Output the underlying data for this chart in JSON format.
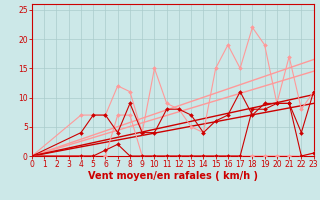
{
  "xlabel": "Vent moyen/en rafales ( km/h )",
  "xlim": [
    0,
    23
  ],
  "ylim": [
    0,
    26
  ],
  "xticks": [
    0,
    1,
    2,
    3,
    4,
    5,
    6,
    7,
    8,
    9,
    10,
    11,
    12,
    13,
    14,
    15,
    16,
    17,
    18,
    19,
    20,
    21,
    22,
    23
  ],
  "yticks": [
    0,
    5,
    10,
    15,
    20,
    25
  ],
  "bg_color": "#cce8e8",
  "grid_color": "#aacccc",
  "series": [
    {
      "x": [
        0,
        4,
        5,
        6,
        7,
        8,
        9,
        10,
        11,
        12,
        13,
        14,
        15,
        16,
        17,
        18,
        19,
        20,
        21,
        22,
        23
      ],
      "y": [
        0,
        7,
        7,
        7,
        12,
        11,
        4,
        15,
        9,
        8,
        5,
        4,
        15,
        19,
        15,
        22,
        19,
        9,
        17,
        8,
        11
      ],
      "color": "#ff9999",
      "lw": 0.8,
      "marker": "D",
      "ms": 2.0,
      "zorder": 3
    },
    {
      "x": [
        0,
        4,
        5,
        6,
        7,
        8,
        9,
        10,
        11,
        12,
        13,
        14,
        15,
        16,
        17,
        18,
        19,
        20,
        21,
        22,
        23
      ],
      "y": [
        0,
        0,
        0,
        0,
        7,
        7,
        0,
        0,
        0,
        0,
        0,
        0,
        0,
        0,
        0,
        0,
        0,
        0,
        0,
        0,
        0.5
      ],
      "color": "#ff9999",
      "lw": 0.8,
      "marker": "D",
      "ms": 2.0,
      "zorder": 3
    },
    {
      "x": [
        0,
        4,
        5,
        6,
        7,
        8,
        9,
        10,
        11,
        12,
        13,
        14,
        15,
        16,
        17,
        18,
        19,
        20,
        21,
        22,
        23
      ],
      "y": [
        0,
        4,
        7,
        7,
        4,
        9,
        4,
        4,
        8,
        8,
        7,
        4,
        6,
        7,
        11,
        7,
        9,
        9,
        9,
        4,
        11
      ],
      "color": "#cc0000",
      "lw": 0.8,
      "marker": "D",
      "ms": 2.0,
      "zorder": 4
    },
    {
      "x": [
        0,
        4,
        5,
        6,
        7,
        8,
        9,
        10,
        11,
        12,
        13,
        14,
        15,
        16,
        17,
        18,
        19,
        20,
        21,
        22,
        23
      ],
      "y": [
        0,
        0,
        0,
        1,
        2,
        0,
        0,
        0,
        0,
        0,
        0,
        0,
        0,
        0,
        0,
        8,
        8,
        9,
        9,
        0,
        0.5
      ],
      "color": "#cc0000",
      "lw": 0.8,
      "marker": "D",
      "ms": 2.0,
      "zorder": 4
    },
    {
      "x": [
        0,
        23
      ],
      "y": [
        0,
        16.5
      ],
      "color": "#ff9999",
      "lw": 1.0,
      "marker": null,
      "ms": 0,
      "zorder": 2,
      "linestyle": "-"
    },
    {
      "x": [
        0,
        23
      ],
      "y": [
        0,
        14.5
      ],
      "color": "#ff9999",
      "lw": 1.0,
      "marker": null,
      "ms": 0,
      "zorder": 2,
      "linestyle": "-"
    },
    {
      "x": [
        0,
        23
      ],
      "y": [
        0,
        10.5
      ],
      "color": "#cc0000",
      "lw": 1.0,
      "marker": null,
      "ms": 0,
      "zorder": 2,
      "linestyle": "-"
    },
    {
      "x": [
        0,
        23
      ],
      "y": [
        0,
        9.0
      ],
      "color": "#cc0000",
      "lw": 1.0,
      "marker": null,
      "ms": 0,
      "zorder": 2,
      "linestyle": "-"
    }
  ],
  "spine_color": "#cc0000",
  "xlabel_color": "#cc0000",
  "tick_color": "#cc0000",
  "xlabel_fontsize": 7.0,
  "tick_fontsize": 5.5
}
